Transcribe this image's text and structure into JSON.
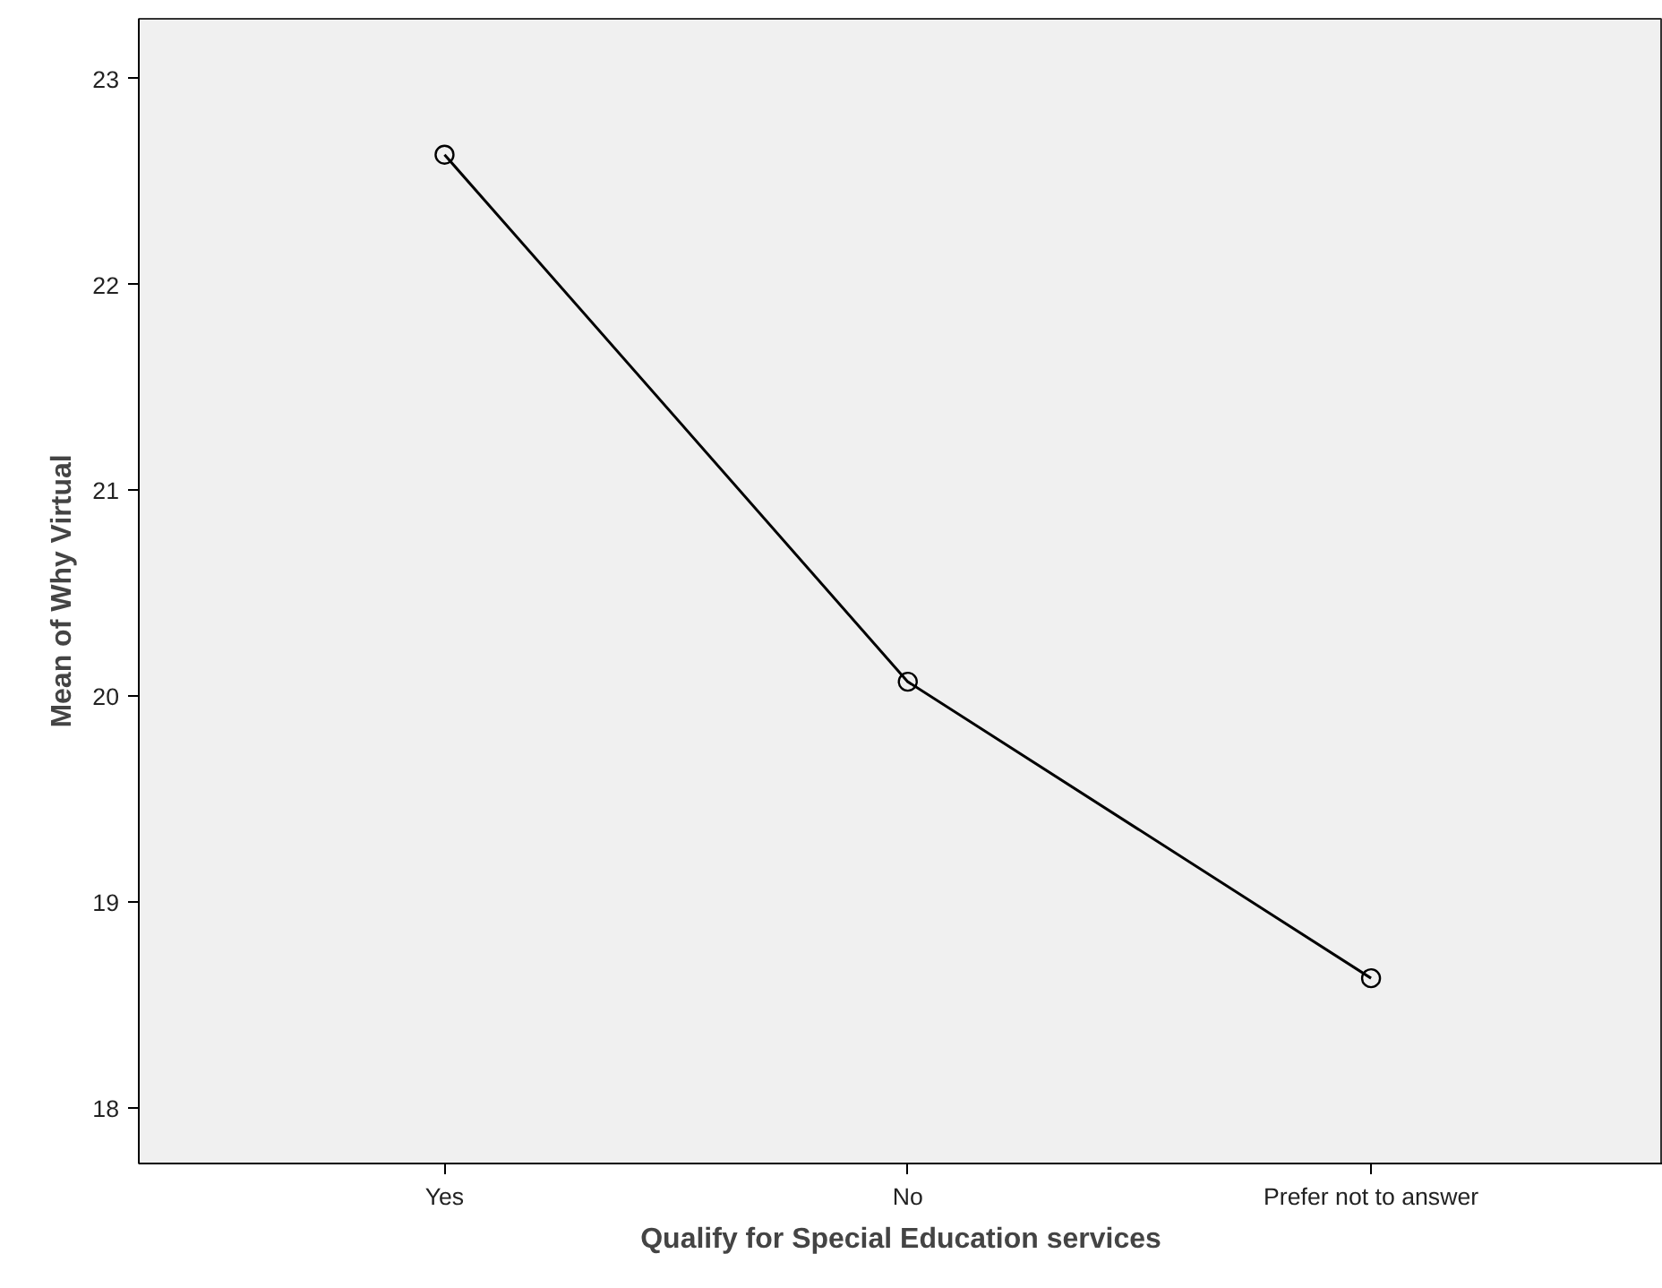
{
  "chart_data": {
    "type": "line",
    "xlabel": "Qualify for Special Education services",
    "ylabel": "Mean of Why Virtual",
    "categories": [
      "Yes",
      "No",
      "Prefer not to answer"
    ],
    "series": [
      {
        "color": "#000000",
        "values": [
          22.63,
          20.07,
          18.63
        ]
      }
    ],
    "ylim": [
      17.73,
      23.29
    ],
    "yticks": [
      18,
      19,
      20,
      21,
      22,
      23
    ],
    "grid": false,
    "marker": "circle",
    "line_style": "solid"
  }
}
